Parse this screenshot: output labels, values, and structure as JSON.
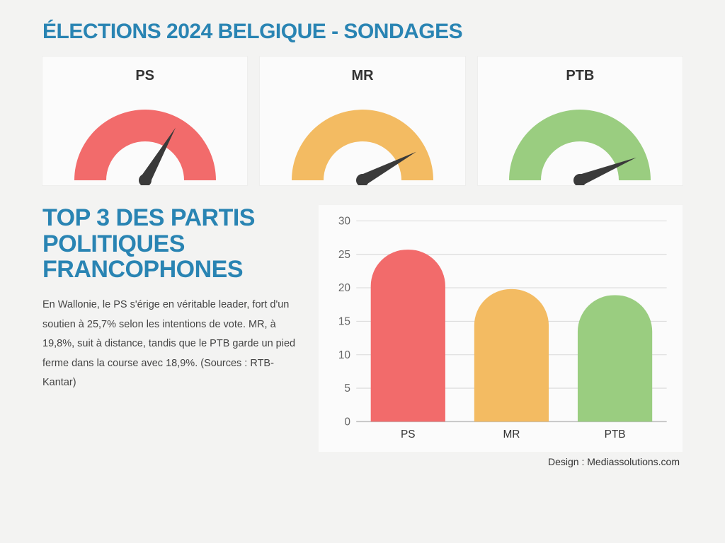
{
  "title": "ÉLECTIONS 2024 BELGIQUE - SONDAGES",
  "colors": {
    "accent": "#2984b3",
    "needle": "#3a3a3a",
    "card_bg": "#fbfbfb",
    "page_bg": "#f3f3f2",
    "grid": "#d9d9d9",
    "axis_text": "#666"
  },
  "gauges": [
    {
      "label": "PS",
      "color": "#f26b6b",
      "needle_angle": 120
    },
    {
      "label": "MR",
      "color": "#f3bb62",
      "needle_angle": 152
    },
    {
      "label": "PTB",
      "color": "#9acd80",
      "needle_angle": 158
    }
  ],
  "subhead": "TOP 3 DES PARTIS POLITIQUES FRANCOPHONES",
  "body": "En Wallonie, le PS s'érige en véritable leader, fort d'un soutien à 25,7% selon les intentions de vote. MR, à 19,8%, suit à distance, tandis que le PTB garde un pied ferme dans la course avec 18,9%. (Sources : RTB- Kantar)",
  "bar_chart": {
    "type": "bar",
    "categories": [
      "PS",
      "MR",
      "PTB"
    ],
    "values": [
      25.7,
      19.8,
      18.9
    ],
    "bar_colors": [
      "#f26b6b",
      "#f3bb62",
      "#9acd80"
    ],
    "ylim": [
      0,
      30
    ],
    "yticks": [
      0,
      5,
      10,
      15,
      20,
      25,
      30
    ],
    "background_color": "#fbfbfb",
    "grid_color": "#d9d9d9",
    "axis_fontsize": 15,
    "bar_radius_top": 50
  },
  "credit": "Design : Mediassolutions.com"
}
